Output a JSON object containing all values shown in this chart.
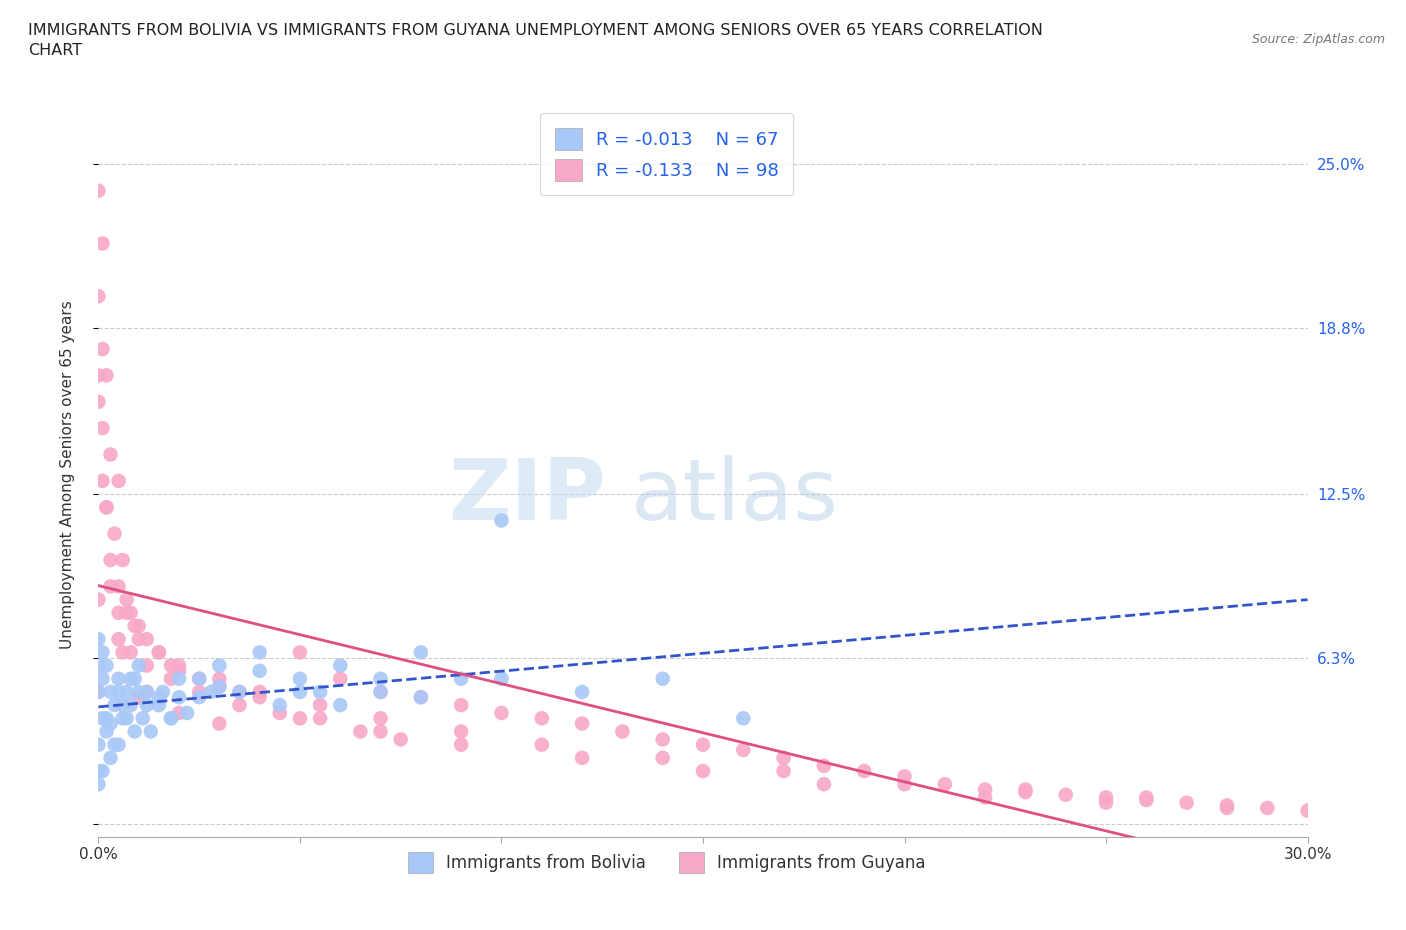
{
  "title": "IMMIGRANTS FROM BOLIVIA VS IMMIGRANTS FROM GUYANA UNEMPLOYMENT AMONG SENIORS OVER 65 YEARS CORRELATION\nCHART",
  "source": "Source: ZipAtlas.com",
  "ylabel": "Unemployment Among Seniors over 65 years",
  "xlim": [
    0.0,
    0.3
  ],
  "ylim": [
    -0.005,
    0.27
  ],
  "bolivia_color": "#a8c8f8",
  "guyana_color": "#f8a8c8",
  "bolivia_line_color": "#3355cc",
  "guyana_line_color": "#e05080",
  "R_bolivia": -0.013,
  "N_bolivia": 67,
  "R_guyana": -0.133,
  "N_guyana": 98,
  "legend_label_bolivia": "Immigrants from Bolivia",
  "legend_label_guyana": "Immigrants from Guyana",
  "watermark_zip": "ZIP",
  "watermark_atlas": "atlas",
  "bolivia_x": [
    0.0,
    0.0,
    0.0,
    0.001,
    0.001,
    0.002,
    0.002,
    0.003,
    0.003,
    0.004,
    0.005,
    0.005,
    0.006,
    0.007,
    0.008,
    0.009,
    0.01,
    0.011,
    0.012,
    0.013,
    0.015,
    0.016,
    0.018,
    0.02,
    0.022,
    0.025,
    0.028,
    0.03,
    0.035,
    0.04,
    0.045,
    0.05,
    0.055,
    0.06,
    0.07,
    0.08,
    0.09,
    0.1,
    0.0,
    0.0,
    0.0,
    0.001,
    0.001,
    0.002,
    0.003,
    0.004,
    0.005,
    0.006,
    0.007,
    0.008,
    0.009,
    0.01,
    0.012,
    0.015,
    0.018,
    0.02,
    0.025,
    0.03,
    0.04,
    0.05,
    0.06,
    0.07,
    0.08,
    0.1,
    0.12,
    0.14,
    0.16
  ],
  "bolivia_y": [
    0.05,
    0.03,
    0.02,
    0.055,
    0.04,
    0.06,
    0.035,
    0.05,
    0.025,
    0.045,
    0.055,
    0.03,
    0.04,
    0.05,
    0.045,
    0.055,
    0.06,
    0.04,
    0.05,
    0.035,
    0.045,
    0.05,
    0.04,
    0.048,
    0.042,
    0.055,
    0.05,
    0.06,
    0.05,
    0.065,
    0.045,
    0.055,
    0.05,
    0.06,
    0.055,
    0.065,
    0.055,
    0.115,
    0.07,
    0.06,
    0.015,
    0.065,
    0.02,
    0.04,
    0.038,
    0.03,
    0.05,
    0.045,
    0.04,
    0.055,
    0.035,
    0.05,
    0.045,
    0.048,
    0.04,
    0.055,
    0.048,
    0.052,
    0.058,
    0.05,
    0.045,
    0.05,
    0.048,
    0.055,
    0.05,
    0.055,
    0.04
  ],
  "guyana_x": [
    0.0,
    0.0,
    0.0,
    0.001,
    0.001,
    0.001,
    0.002,
    0.002,
    0.003,
    0.003,
    0.004,
    0.005,
    0.005,
    0.006,
    0.006,
    0.007,
    0.008,
    0.009,
    0.01,
    0.01,
    0.012,
    0.012,
    0.015,
    0.018,
    0.02,
    0.02,
    0.025,
    0.03,
    0.03,
    0.035,
    0.04,
    0.045,
    0.05,
    0.055,
    0.06,
    0.065,
    0.07,
    0.075,
    0.08,
    0.09,
    0.1,
    0.11,
    0.12,
    0.13,
    0.14,
    0.15,
    0.16,
    0.17,
    0.18,
    0.19,
    0.2,
    0.21,
    0.22,
    0.23,
    0.24,
    0.25,
    0.26,
    0.27,
    0.28,
    0.29,
    0.3,
    0.0,
    0.001,
    0.002,
    0.003,
    0.005,
    0.007,
    0.01,
    0.015,
    0.02,
    0.03,
    0.04,
    0.055,
    0.07,
    0.09,
    0.11,
    0.14,
    0.17,
    0.2,
    0.23,
    0.26,
    0.005,
    0.008,
    0.012,
    0.018,
    0.025,
    0.035,
    0.05,
    0.07,
    0.09,
    0.12,
    0.15,
    0.18,
    0.22,
    0.25,
    0.28,
    0.0,
    0.0
  ],
  "guyana_y": [
    0.24,
    0.2,
    0.16,
    0.22,
    0.18,
    0.13,
    0.17,
    0.12,
    0.14,
    0.09,
    0.11,
    0.13,
    0.08,
    0.1,
    0.065,
    0.085,
    0.08,
    0.075,
    0.075,
    0.048,
    0.07,
    0.05,
    0.065,
    0.06,
    0.058,
    0.042,
    0.055,
    0.052,
    0.038,
    0.05,
    0.048,
    0.042,
    0.065,
    0.04,
    0.055,
    0.035,
    0.05,
    0.032,
    0.048,
    0.045,
    0.042,
    0.04,
    0.038,
    0.035,
    0.032,
    0.03,
    0.028,
    0.025,
    0.022,
    0.02,
    0.018,
    0.015,
    0.013,
    0.012,
    0.011,
    0.01,
    0.009,
    0.008,
    0.007,
    0.006,
    0.005,
    0.17,
    0.15,
    0.12,
    0.1,
    0.09,
    0.08,
    0.07,
    0.065,
    0.06,
    0.055,
    0.05,
    0.045,
    0.04,
    0.035,
    0.03,
    0.025,
    0.02,
    0.015,
    0.013,
    0.01,
    0.07,
    0.065,
    0.06,
    0.055,
    0.05,
    0.045,
    0.04,
    0.035,
    0.03,
    0.025,
    0.02,
    0.015,
    0.01,
    0.008,
    0.006,
    0.085,
    0.05
  ]
}
